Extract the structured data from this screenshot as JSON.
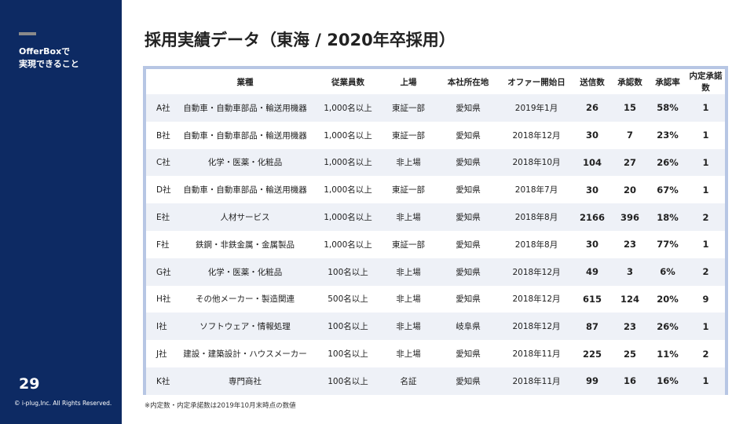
{
  "sidebar": {
    "tagline_1": "OfferBoxで",
    "tagline_2": "実現できること",
    "page_number": "29",
    "copyright": "© i-plug,Inc. All Rights Reserved."
  },
  "title": "採用実績データ（東海 / 2020年卒採用）",
  "table": {
    "headers": [
      "",
      "業種",
      "従業員数",
      "上場",
      "本社所在地",
      "オファー開始日",
      "送信数",
      "承認数",
      "承認率",
      "内定承諾数"
    ],
    "rows": [
      [
        "A社",
        "自動車・自動車部品・輸送用機器",
        "1,000名以上",
        "東証一部",
        "愛知県",
        "2019年1月",
        "26",
        "15",
        "58%",
        "1"
      ],
      [
        "B社",
        "自動車・自動車部品・輸送用機器",
        "1,000名以上",
        "東証一部",
        "愛知県",
        "2018年12月",
        "30",
        "7",
        "23%",
        "1"
      ],
      [
        "C社",
        "化学・医薬・化粧品",
        "1,000名以上",
        "非上場",
        "愛知県",
        "2018年10月",
        "104",
        "27",
        "26%",
        "1"
      ],
      [
        "D社",
        "自動車・自動車部品・輸送用機器",
        "1,000名以上",
        "東証一部",
        "愛知県",
        "2018年7月",
        "30",
        "20",
        "67%",
        "1"
      ],
      [
        "E社",
        "人材サービス",
        "1,000名以上",
        "非上場",
        "愛知県",
        "2018年8月",
        "2166",
        "396",
        "18%",
        "2"
      ],
      [
        "F社",
        "鉄鋼・非鉄金属・金属製品",
        "1,000名以上",
        "東証一部",
        "愛知県",
        "2018年8月",
        "30",
        "23",
        "77%",
        "1"
      ],
      [
        "G社",
        "化学・医薬・化粧品",
        "100名以上",
        "非上場",
        "愛知県",
        "2018年12月",
        "49",
        "3",
        "6%",
        "2"
      ],
      [
        "H社",
        "その他メーカー・製造関連",
        "500名以上",
        "非上場",
        "愛知県",
        "2018年12月",
        "615",
        "124",
        "20%",
        "9"
      ],
      [
        "I社",
        "ソフトウェア・情報処理",
        "100名以上",
        "非上場",
        "岐阜県",
        "2018年12月",
        "87",
        "23",
        "26%",
        "1"
      ],
      [
        "J社",
        "建設・建築設計・ハウスメーカー",
        "100名以上",
        "非上場",
        "愛知県",
        "2018年11月",
        "225",
        "25",
        "11%",
        "2"
      ],
      [
        "K社",
        "専門商社",
        "100名以上",
        "名証",
        "愛知県",
        "2018年11月",
        "99",
        "16",
        "16%",
        "1"
      ]
    ]
  },
  "footnote": "※内定数・内定承諾数は2019年10月末時点の数値"
}
